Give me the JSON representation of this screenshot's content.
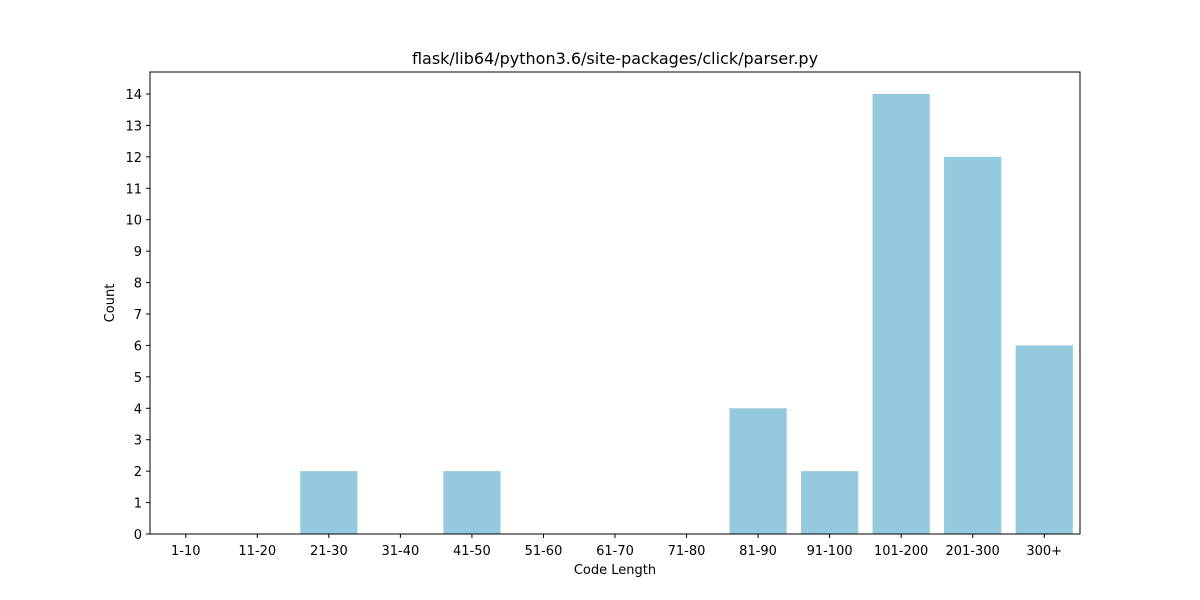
{
  "chart_data": {
    "type": "bar",
    "title": "flask/lib64/python3.6/site-packages/click/parser.py",
    "xlabel": "Code Length",
    "ylabel": "Count",
    "categories": [
      "1-10",
      "11-20",
      "21-30",
      "31-40",
      "41-50",
      "51-60",
      "61-70",
      "71-80",
      "81-90",
      "91-100",
      "101-200",
      "201-300",
      "300+"
    ],
    "values": [
      0,
      0,
      2,
      0,
      2,
      0,
      0,
      0,
      4,
      2,
      14,
      12,
      6
    ],
    "ylim": [
      0,
      14.7
    ],
    "yticks": [
      0,
      1,
      2,
      3,
      4,
      5,
      6,
      7,
      8,
      9,
      10,
      11,
      12,
      13,
      14
    ],
    "grid": false,
    "colors": {
      "bar": "#95c9de",
      "axis": "#000000"
    }
  }
}
